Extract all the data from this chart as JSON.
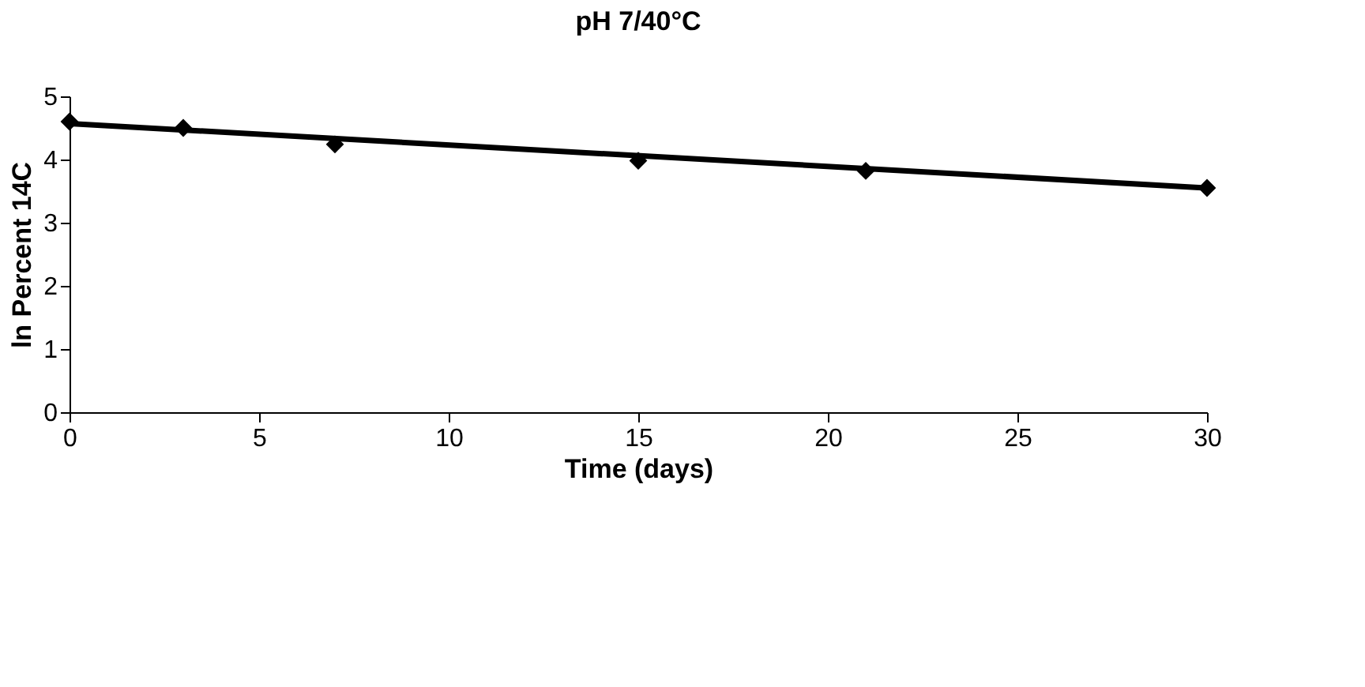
{
  "chart_data": {
    "type": "scatter",
    "title": "pH 7/40°C",
    "xlabel": "Time (days)",
    "ylabel": "ln Percent 14C",
    "x": [
      0,
      3,
      7,
      15,
      21,
      30
    ],
    "series": [
      {
        "color": "#000000",
        "values": [
          4.6,
          4.5,
          4.24,
          3.98,
          3.82,
          3.55
        ],
        "marker": "diamond"
      },
      {
        "type": "line",
        "color": "#000000",
        "x": [
          0,
          30
        ],
        "values": [
          4.57,
          3.55
        ],
        "marker": "none",
        "line_style": "solid"
      }
    ],
    "xlim": [
      0,
      30
    ],
    "xticks": [
      0,
      5,
      10,
      15,
      20,
      25,
      30
    ],
    "ylim": [
      0,
      5
    ],
    "yticks": [
      0,
      1,
      2,
      3,
      4,
      5
    ],
    "grid": false
  }
}
